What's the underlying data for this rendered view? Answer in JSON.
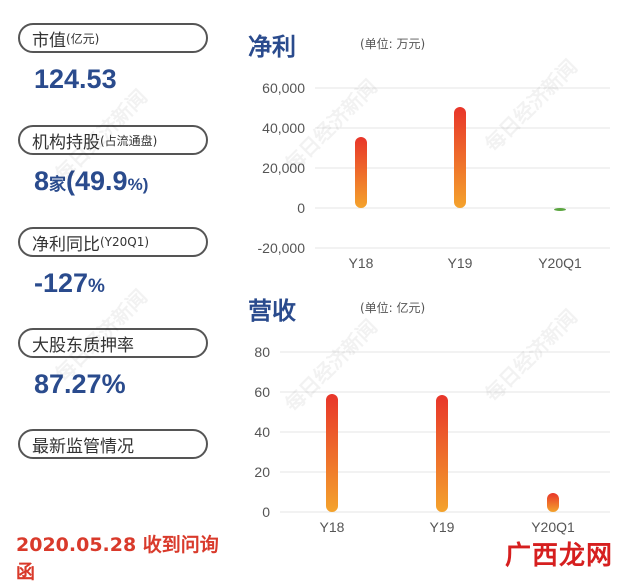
{
  "left_panel": {
    "items": [
      {
        "label": "市值",
        "label_small": "(亿元)",
        "value": "124.53",
        "value_unit": ""
      },
      {
        "label": "机构持股",
        "label_small": "(占流通盘)",
        "value": "8",
        "value_unit": "家",
        "value2": "(49.9",
        "value2_unit": "%)"
      },
      {
        "label": "净利同比",
        "label_small": "(Y20Q1)",
        "value": "-127",
        "value_unit": "%"
      },
      {
        "label": "大股东质押率",
        "label_small": "",
        "value": "87.27%",
        "value_unit": ""
      },
      {
        "label": "最新监管情况",
        "label_small": "",
        "value": "",
        "value_unit": ""
      }
    ],
    "date_line": "2020.05.28 收到问询函"
  },
  "brand": "广西龙网",
  "watermark": "每日经济新闻",
  "colors": {
    "title_blue": "#2a4b8d",
    "date_red": "#d93a2b",
    "bar_top": "#e8352a",
    "bar_bottom": "#f4a32c",
    "negative_bar": "#5aa53f"
  },
  "chart_data": [
    {
      "type": "bar",
      "title": "净利",
      "unit_note": "(单位: 万元)",
      "categories": [
        "Y18",
        "Y19",
        "Y20Q1"
      ],
      "values": [
        35500,
        50500,
        -1500
      ],
      "yticks": [
        "60,000",
        "40,000",
        "20,000",
        "0",
        "-20,000"
      ],
      "ylim": [
        -20000,
        60000
      ],
      "grid": true
    },
    {
      "type": "bar",
      "title": "营收",
      "unit_note": "(单位: 亿元)",
      "categories": [
        "Y18",
        "Y19",
        "Y20Q1"
      ],
      "values": [
        59,
        58.5,
        9.5
      ],
      "yticks": [
        "80",
        "60",
        "40",
        "20",
        "0"
      ],
      "ylim": [
        0,
        80
      ],
      "grid": true
    }
  ]
}
